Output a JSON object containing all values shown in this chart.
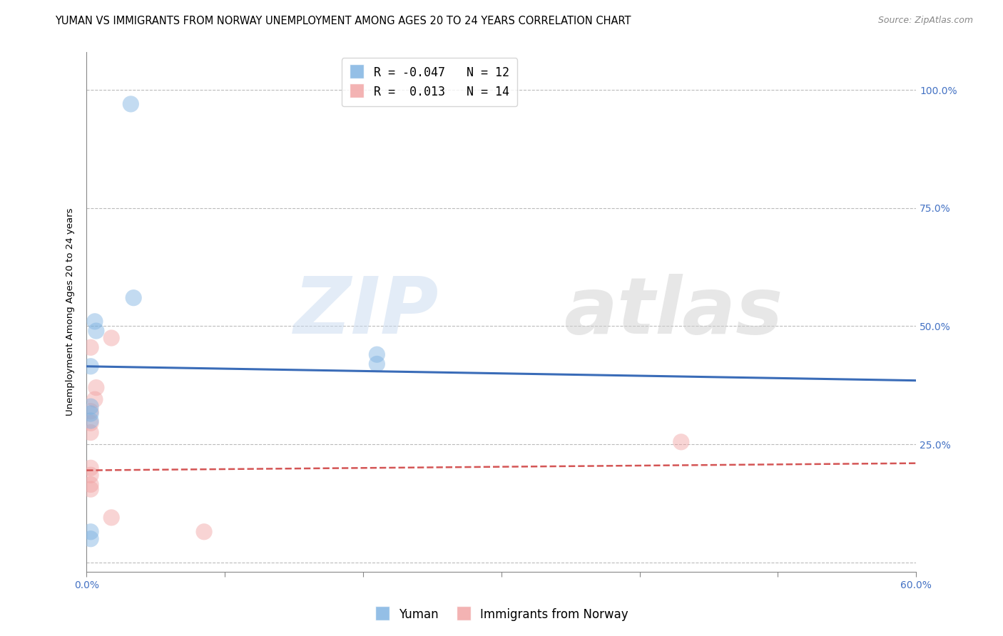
{
  "title": "YUMAN VS IMMIGRANTS FROM NORWAY UNEMPLOYMENT AMONG AGES 20 TO 24 YEARS CORRELATION CHART",
  "source": "Source: ZipAtlas.com",
  "xlim": [
    0.0,
    0.6
  ],
  "ylim": [
    -0.02,
    1.08
  ],
  "yuman_R": -0.047,
  "yuman_N": 12,
  "norway_R": 0.013,
  "norway_N": 14,
  "yuman_color": "#7ab0e0",
  "norway_color": "#f0a0a0",
  "yuman_line_color": "#3a6cb8",
  "norway_line_color": "#d45555",
  "watermark_zip": "ZIP",
  "watermark_atlas": "atlas",
  "legend_label_yuman": "Yuman",
  "legend_label_norway": "Immigrants from Norway",
  "yuman_points_x": [
    0.003,
    0.003,
    0.006,
    0.007,
    0.003,
    0.003,
    0.003,
    0.003,
    0.032,
    0.034,
    0.21,
    0.21
  ],
  "yuman_points_y": [
    0.415,
    0.33,
    0.51,
    0.49,
    0.315,
    0.3,
    0.05,
    0.065,
    0.97,
    0.56,
    0.42,
    0.44
  ],
  "norway_points_x": [
    0.003,
    0.003,
    0.003,
    0.003,
    0.003,
    0.003,
    0.003,
    0.003,
    0.006,
    0.007,
    0.018,
    0.018,
    0.43,
    0.085
  ],
  "norway_points_y": [
    0.455,
    0.32,
    0.295,
    0.275,
    0.2,
    0.185,
    0.165,
    0.155,
    0.345,
    0.37,
    0.475,
    0.095,
    0.255,
    0.065
  ],
  "yuman_trend_x": [
    0.0,
    0.6
  ],
  "yuman_trend_y": [
    0.415,
    0.385
  ],
  "norway_trend_x": [
    0.0,
    0.6
  ],
  "norway_trend_y": [
    0.195,
    0.21
  ],
  "ytick_positions": [
    0.0,
    0.25,
    0.5,
    0.75,
    1.0
  ],
  "ytick_labels_right": [
    "",
    "25.0%",
    "50.0%",
    "75.0%",
    "100.0%"
  ],
  "xtick_positions": [
    0.0,
    0.1,
    0.2,
    0.3,
    0.4,
    0.5,
    0.6
  ],
  "xtick_labels": [
    "0.0%",
    "",
    "",
    "",
    "",
    "",
    "60.0%"
  ],
  "dot_size": 280,
  "dot_alpha": 0.45,
  "grid_color": "#bbbbbb",
  "bg_color": "#ffffff",
  "title_fontsize": 10.5,
  "axis_label_fontsize": 9.5,
  "tick_fontsize": 10,
  "tick_color": "#4472c4"
}
